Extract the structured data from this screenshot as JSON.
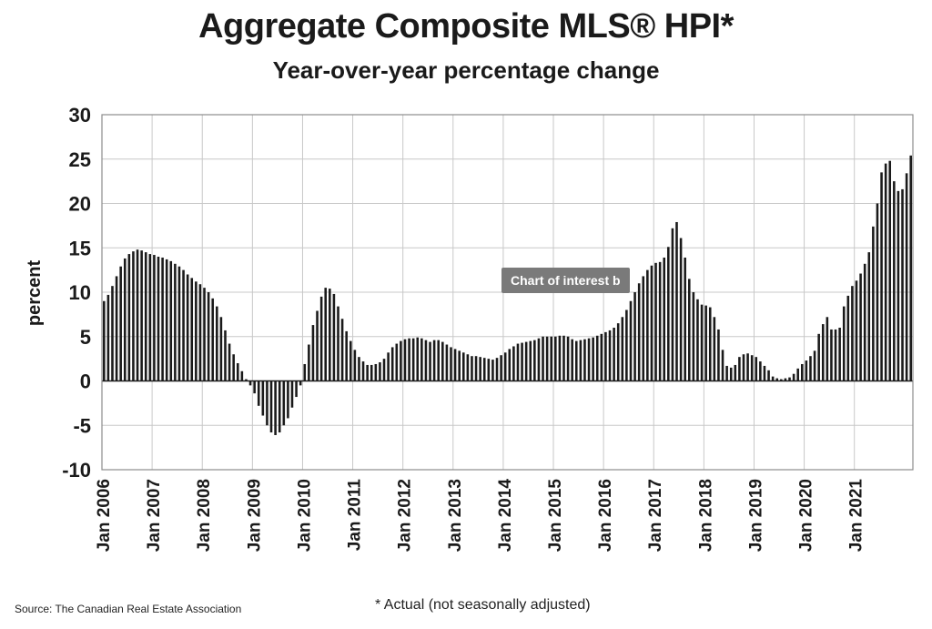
{
  "chart_data": {
    "type": "bar",
    "title": "Aggregate Composite MLS® HPI*",
    "subtitle": "Year-over-year percentage change",
    "ylabel": "percent",
    "ylim": [
      -10,
      30
    ],
    "yticks": [
      -10,
      -5,
      0,
      5,
      10,
      15,
      20,
      25,
      30
    ],
    "x_start": "Jan 2006",
    "x_frequency": "monthly",
    "x_tick_labels": [
      "Jan 2006",
      "Jan 2007",
      "Jan 2008",
      "Jan 2009",
      "Jan 2010",
      "Jan 2011",
      "Jan 2012",
      "Jan 2013",
      "Jan 2014",
      "Jan 2015",
      "Jan 2016",
      "Jan 2017",
      "Jan 2018",
      "Jan 2019",
      "Jan 2020",
      "Jan 2021"
    ],
    "grid": true,
    "bar_color": "#1a1a1a",
    "values": [
      9.0,
      9.7,
      10.7,
      11.8,
      12.9,
      13.8,
      14.3,
      14.6,
      14.8,
      14.7,
      14.5,
      14.3,
      14.2,
      14.0,
      13.9,
      13.7,
      13.5,
      13.2,
      12.9,
      12.5,
      12.0,
      11.6,
      11.2,
      10.9,
      10.5,
      10.0,
      9.3,
      8.4,
      7.2,
      5.7,
      4.2,
      3.0,
      2.0,
      1.1,
      0.2,
      -0.5,
      -1.4,
      -2.8,
      -3.9,
      -5.0,
      -5.8,
      -6.1,
      -5.8,
      -5.0,
      -4.2,
      -3.0,
      -1.8,
      -0.5,
      1.9,
      4.1,
      6.3,
      7.9,
      9.5,
      10.5,
      10.4,
      9.8,
      8.4,
      7.0,
      5.6,
      4.5,
      3.5,
      2.7,
      2.2,
      1.8,
      1.8,
      1.9,
      2.1,
      2.5,
      3.2,
      3.8,
      4.2,
      4.5,
      4.7,
      4.8,
      4.8,
      4.9,
      4.8,
      4.6,
      4.4,
      4.6,
      4.6,
      4.4,
      4.1,
      3.8,
      3.6,
      3.4,
      3.2,
      3.0,
      2.8,
      2.8,
      2.7,
      2.6,
      2.5,
      2.4,
      2.6,
      2.9,
      3.2,
      3.6,
      3.9,
      4.2,
      4.3,
      4.4,
      4.5,
      4.6,
      4.8,
      5.0,
      5.0,
      5.0,
      5.0,
      5.1,
      5.1,
      5.0,
      4.7,
      4.5,
      4.6,
      4.7,
      4.8,
      4.9,
      5.1,
      5.3,
      5.5,
      5.7,
      6.0,
      6.5,
      7.2,
      8.0,
      9.0,
      10.0,
      11.0,
      11.8,
      12.5,
      13.0,
      13.3,
      13.4,
      13.9,
      15.1,
      17.2,
      17.9,
      16.1,
      13.9,
      11.5,
      10.0,
      9.2,
      8.6,
      8.5,
      8.3,
      7.2,
      5.8,
      3.5,
      1.7,
      1.5,
      1.8,
      2.7,
      3.0,
      3.1,
      2.9,
      2.7,
      2.2,
      1.7,
      1.2,
      0.5,
      0.3,
      0.2,
      0.3,
      0.4,
      0.8,
      1.4,
      1.9,
      2.3,
      2.8,
      3.4,
      5.3,
      6.4,
      7.2,
      5.8,
      5.8,
      6.0,
      8.4,
      9.6,
      10.7,
      11.3,
      12.1,
      13.2,
      14.5,
      17.4,
      20.0,
      23.5,
      24.5,
      24.8,
      22.5,
      21.4,
      21.6,
      23.4,
      25.4
    ]
  },
  "source": "Source: The Canadian Real Estate Association",
  "footnote": "* Actual (not seasonally adjusted)",
  "tooltip": "Chart of interest b"
}
